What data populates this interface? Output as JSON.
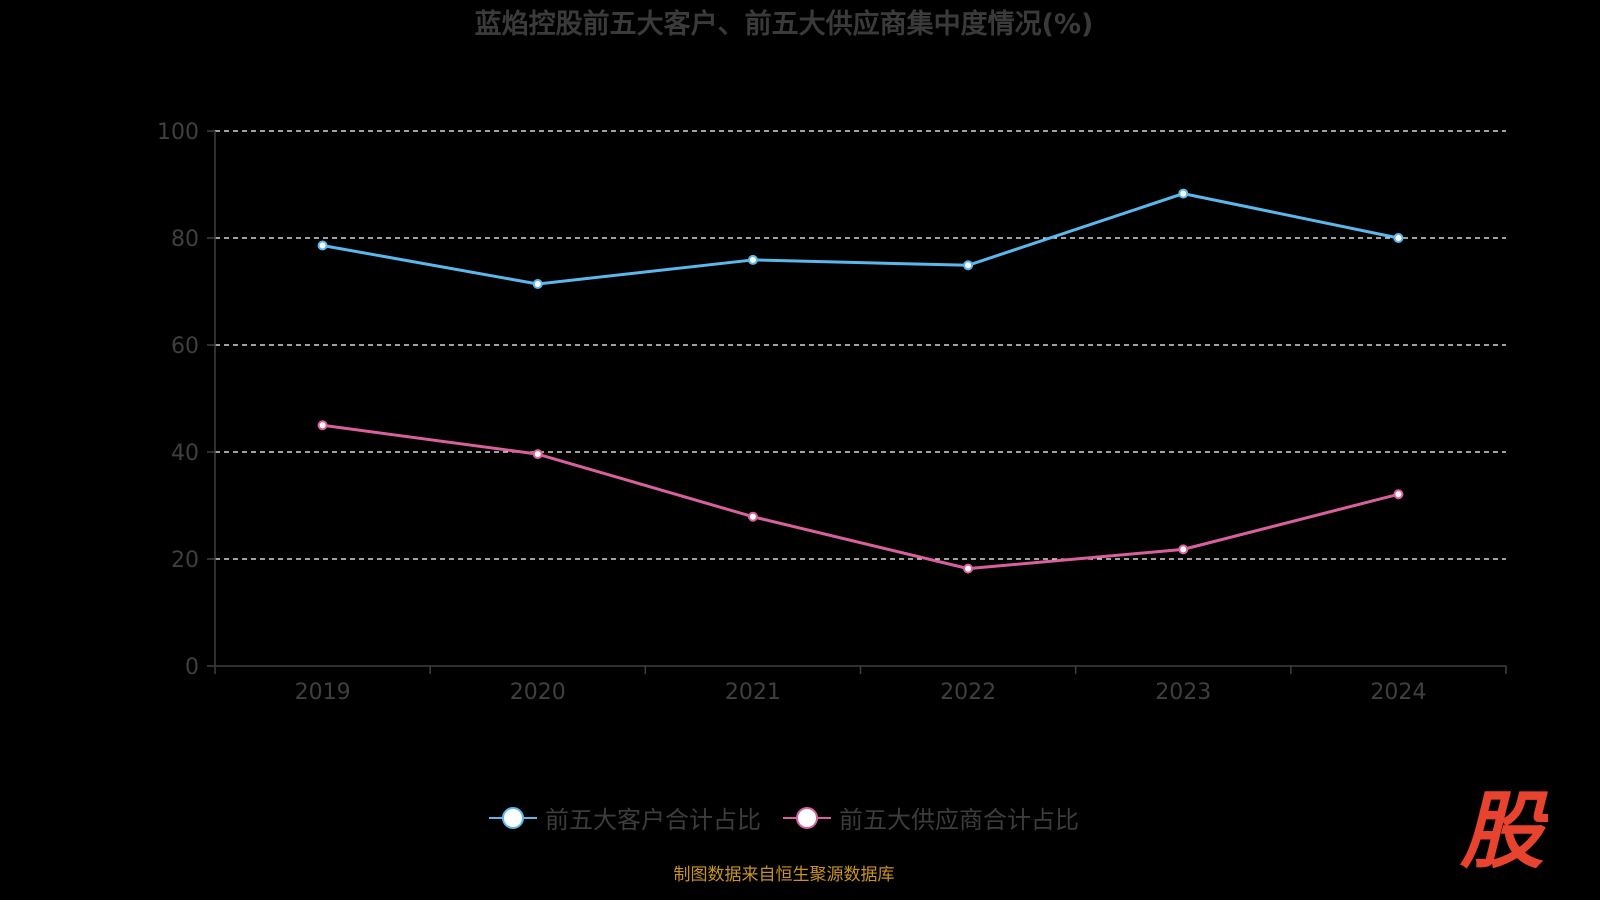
{
  "title": "蓝焰控股前五大客户、前五大供应商集中度情况(%)",
  "source_note": "制图数据来自恒生聚源数据库",
  "logo_text": "股",
  "colors": {
    "background": "#000000",
    "customer_series": "#5bb8ec",
    "supplier_series": "#d9609e",
    "grid": "#ffffff",
    "axis_text": "#3f3f3f",
    "source_text": "#c8941f",
    "logo": "#e8432e"
  },
  "chart_data": {
    "type": "line",
    "title": "蓝焰控股前五大客户、前五大供应商集中度情况(%)",
    "categories": [
      "2019",
      "2020",
      "2021",
      "2022",
      "2023",
      "2024"
    ],
    "ylim": [
      0,
      100
    ],
    "yticks": [
      0,
      20,
      40,
      60,
      80,
      100
    ],
    "grid": true,
    "legend_position": "bottom",
    "series": [
      {
        "name": "前五大客户合计占比",
        "values": [
          78.6,
          71.4,
          75.9,
          74.9,
          88.3,
          80.0
        ]
      },
      {
        "name": "前五大供应商合计占比",
        "values": [
          45.0,
          39.6,
          27.9,
          18.2,
          21.8,
          32.1
        ]
      }
    ]
  }
}
